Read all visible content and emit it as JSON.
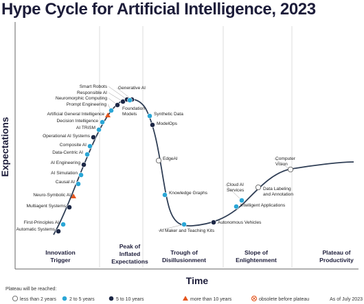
{
  "title": "Hype Cycle for Artificial Intelligence, 2023",
  "axes": {
    "y": "Expectations",
    "x": "Time"
  },
  "phases": [
    [
      "Innovation",
      "Trigger"
    ],
    [
      "Peak of",
      "Inflated",
      "Expectations"
    ],
    [
      "Trough of",
      "Disillusionment"
    ],
    [
      "Slope of",
      "Enlightenment"
    ],
    [
      "Plateau of",
      "Productivity"
    ]
  ],
  "legend": {
    "title": "Plateau will be reached:",
    "items": [
      {
        "label": "less than 2 years",
        "marker": "hollow"
      },
      {
        "label": "2 to 5 years",
        "marker": "light-blue"
      },
      {
        "label": "5 to 10 years",
        "marker": "navy"
      },
      {
        "label": "more than 10 years",
        "marker": "orange-triangle"
      },
      {
        "label": "obsolete before plateau",
        "marker": "crossed-circle"
      }
    ],
    "asof": "As of July 2023"
  },
  "colors": {
    "light": "#2aa6d6",
    "navy": "#1d2846",
    "orange": "#e4561f",
    "hollow": "#ffffff",
    "curve": "#2f3e55"
  },
  "technologies": [
    {
      "name": "Automatic Systems",
      "m": "navy"
    },
    {
      "name": "First-Principles AI",
      "m": "light"
    },
    {
      "name": "Multiagent Systems",
      "m": "navy"
    },
    {
      "name": "Neuro-Symbolic AI",
      "m": "orange"
    },
    {
      "name": "Causal AI",
      "m": "light"
    },
    {
      "name": "AI Simulation",
      "m": "light"
    },
    {
      "name": "AI Engineering",
      "m": "navy"
    },
    {
      "name": "Data-Centric AI",
      "m": "light"
    },
    {
      "name": "Composite AI",
      "m": "light"
    },
    {
      "name": "Operational AI Systems",
      "m": "navy"
    },
    {
      "name": "AI TRiSM",
      "m": "light"
    },
    {
      "name": "Decision Intelligence",
      "m": "light"
    },
    {
      "name": "Artificial General Intelligence",
      "m": "orange"
    },
    {
      "name": "Prompt Engineering",
      "m": "light"
    },
    {
      "name": "Neuromorphic Computing",
      "m": "navy"
    },
    {
      "name": "Responsible AI",
      "m": "navy"
    },
    {
      "name": "Smart Robots",
      "m": "navy"
    },
    {
      "name": "Generative AI",
      "m": "navy"
    },
    {
      "name": "Foundation Models",
      "m": "light"
    },
    {
      "name": "Synthetic Data",
      "m": "light"
    },
    {
      "name": "ModelOps",
      "m": "navy"
    },
    {
      "name": "EdgeAI",
      "m": "hollow"
    },
    {
      "name": "Knowledge Graphs",
      "m": "light"
    },
    {
      "name": "AI Maker and Teaching Kits",
      "m": "light"
    },
    {
      "name": "Autonomous Vehicles",
      "m": "navy"
    },
    {
      "name": "Intelligent Applications",
      "m": "light"
    },
    {
      "name": "Cloud AI Services",
      "m": "light"
    },
    {
      "name": "Data Labeling and Annotation",
      "m": "hollow"
    },
    {
      "name": "Computer Vision",
      "m": "hollow"
    }
  ]
}
